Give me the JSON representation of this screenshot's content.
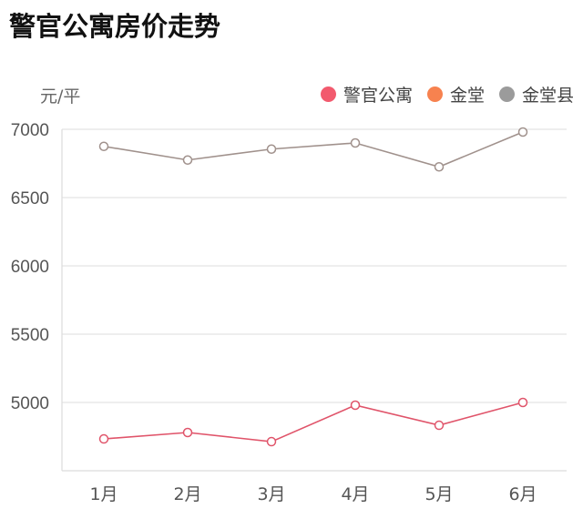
{
  "title": "警官公寓房价走势",
  "unit_label": "元/平",
  "legend": [
    {
      "label": "警官公寓",
      "color": "#f25a6e"
    },
    {
      "label": "金堂",
      "color": "#f7824f"
    },
    {
      "label": "金堂县",
      "color": "#9b9b9b"
    }
  ],
  "chart_data": {
    "type": "line",
    "title": "警官公寓房价走势",
    "xlabel": "",
    "ylabel": "元/平",
    "categories": [
      "1月",
      "2月",
      "3月",
      "4月",
      "5月",
      "6月"
    ],
    "ylim": [
      4500,
      7000
    ],
    "yticks": [
      5000,
      5500,
      6000,
      6500,
      7000
    ],
    "grid": true,
    "legend_position": "top-right",
    "series": [
      {
        "name": "警官公寓",
        "color": "#e0546a",
        "values": [
          4733,
          4780,
          4713,
          4980,
          4833,
          5000
        ]
      },
      {
        "name": "金堂",
        "color": "#f7824f",
        "values": []
      },
      {
        "name": "金堂县",
        "color": "#a0918c",
        "values": [
          6875,
          6775,
          6855,
          6900,
          6725,
          6980
        ]
      }
    ]
  }
}
